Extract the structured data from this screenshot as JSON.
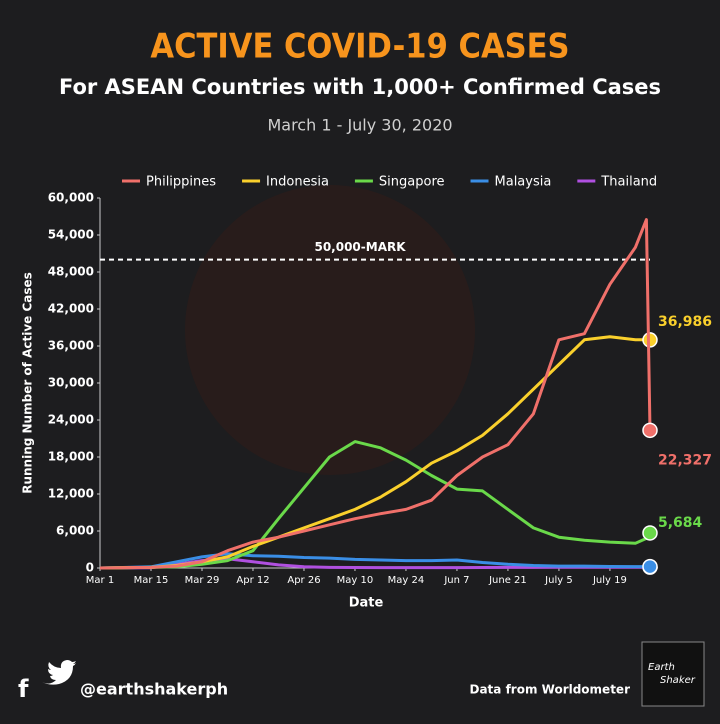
{
  "chart_data": {
    "type": "line",
    "title": "ACTIVE COVID-19 CASES",
    "subtitle": "For ASEAN Countries with 1,000+ Confirmed Cases",
    "date_range": "March 1 - July 30, 2020",
    "x_label": "Date",
    "y_label": "Running Number of Active Cases",
    "x": [
      "Mar 1",
      "Mar 15",
      "Mar 22",
      "Mar 29",
      "Apr 5",
      "Apr 12",
      "Apr 19",
      "Apr 26",
      "May 3",
      "May 10",
      "May 17",
      "May 24",
      "May 31",
      "Jun 7",
      "Jun 14",
      "Jun 21",
      "Jun 28",
      "Jul 5",
      "Jul 12",
      "Jul 19",
      "Jul 26",
      "Jul 29",
      "Jul 30"
    ],
    "xlim": [
      "Mar 1",
      "Jul 30"
    ],
    "xticks": [
      "Mar 1",
      "Mar 15",
      "Mar 29",
      "Apr 12",
      "Apr 26",
      "May 10",
      "May 24",
      "Jun 7",
      "June 21",
      "July 5",
      "July 19"
    ],
    "ylim": [
      0,
      60000
    ],
    "yticks": [
      0,
      {
        "value": 6000,
        "label": "6,000"
      },
      {
        "value": 12000,
        "label": "12,000"
      },
      {
        "value": 18000,
        "label": "18,000"
      },
      {
        "value": 24000,
        "label": "24,000"
      },
      {
        "value": 30000,
        "label": "30,000"
      },
      {
        "value": 36000,
        "label": "36,000"
      },
      {
        "value": 42000,
        "label": "42,000"
      },
      {
        "value": 48000,
        "label": "48,000"
      },
      {
        "value": 54000,
        "label": "54,000"
      },
      {
        "value": 60000,
        "label": "60,000"
      }
    ],
    "reference_line": {
      "value": 50000,
      "label": "50,000-MARK"
    },
    "legend": "top",
    "series": [
      {
        "name": "Philippines",
        "color": "#f0706a",
        "values": [
          0,
          100,
          300,
          1000,
          2800,
          4200,
          5000,
          6000,
          7000,
          8000,
          8800,
          9500,
          11000,
          15000,
          18000,
          20000,
          25000,
          37000,
          38000,
          46000,
          52000,
          56500,
          22327
        ],
        "value_labels": [
          null,
          null,
          null,
          null,
          null,
          null,
          null,
          null,
          null,
          null,
          null,
          null,
          null,
          null,
          null,
          null,
          null,
          null,
          null,
          null,
          null,
          null,
          "22,327"
        ]
      },
      {
        "name": "Indonesia",
        "color": "#fad02c",
        "values": [
          0,
          100,
          400,
          1000,
          1800,
          3500,
          5000,
          6500,
          8000,
          9500,
          11500,
          14000,
          17000,
          19000,
          21500,
          25000,
          29000,
          33000,
          37000,
          37500,
          37000,
          37000,
          36986
        ],
        "value_labels": [
          null,
          null,
          null,
          null,
          null,
          null,
          null,
          null,
          null,
          null,
          null,
          null,
          null,
          null,
          null,
          null,
          null,
          null,
          null,
          null,
          null,
          null,
          "36,986"
        ]
      },
      {
        "name": "Singapore",
        "color": "#6ad94a",
        "values": [
          0,
          100,
          200,
          600,
          1200,
          2800,
          8000,
          13000,
          18000,
          20500,
          19500,
          17500,
          15000,
          12800,
          12500,
          9500,
          6500,
          5000,
          4500,
          4200,
          4000,
          4800,
          5684
        ],
        "value_labels": [
          null,
          null,
          null,
          null,
          null,
          null,
          null,
          null,
          null,
          null,
          null,
          null,
          null,
          null,
          null,
          null,
          null,
          null,
          null,
          null,
          null,
          null,
          "5,684"
        ]
      },
      {
        "name": "Malaysia",
        "color": "#3a8ee6",
        "values": [
          0,
          200,
          1000,
          1800,
          2300,
          2000,
          1900,
          1700,
          1600,
          1400,
          1300,
          1200,
          1200,
          1300,
          900,
          600,
          400,
          300,
          300,
          250,
          230,
          225,
          223
        ]
      },
      {
        "name": "Thailand",
        "color": "#b050e0",
        "values": [
          0,
          50,
          600,
          1200,
          1500,
          1000,
          500,
          200,
          100,
          80,
          70,
          60,
          60,
          70,
          80,
          90,
          100,
          110,
          120,
          130,
          130,
          135,
          135
        ]
      }
    ]
  },
  "footer": {
    "handle": "@earthshakerph",
    "source": "Data from Worldometer",
    "logo": [
      "Earth",
      "Shaker"
    ]
  }
}
